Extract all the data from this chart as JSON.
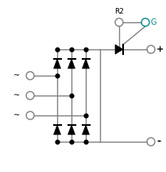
{
  "bg_color": "#ffffff",
  "line_color": "#7f7f7f",
  "dark_color": "#000000",
  "teal_color": "#008B8B",
  "fig_w": 2.09,
  "fig_h": 2.16,
  "dpi": 100,
  "label_R2": "R2",
  "label_G": "G",
  "label_plus": "+",
  "label_minus": "-"
}
